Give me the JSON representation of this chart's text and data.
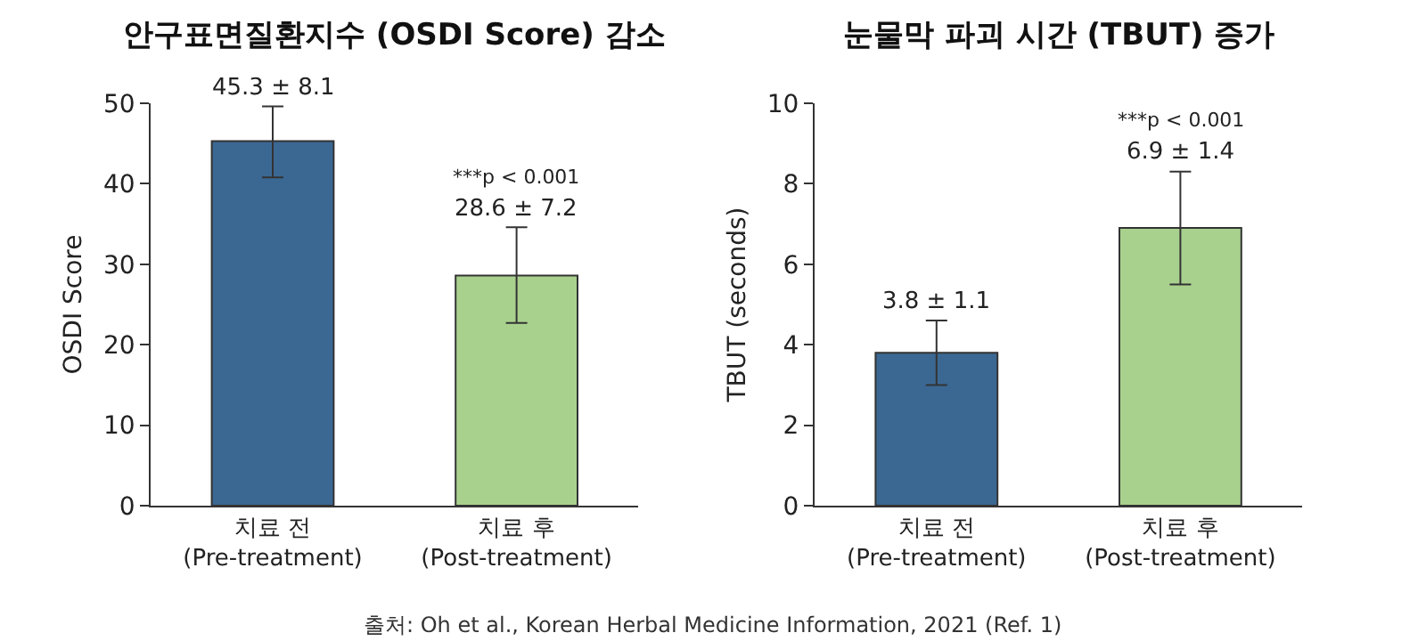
{
  "chart_data": [
    {
      "type": "bar",
      "title": "안구표면질환지수 (OSDI Score) 감소",
      "ylabel": "OSDI Score",
      "categories": [
        "치료 전\n(Pre-treatment)",
        "치료 후\n(Post-treatment)"
      ],
      "values": [
        45.3,
        28.6
      ],
      "colors": [
        "#3b6893",
        "#a9d18e"
      ],
      "errors": [
        [
          40.8,
          49.6
        ],
        [
          22.7,
          34.6
        ]
      ],
      "value_labels": [
        "45.3 ± 8.1",
        "28.6 ± 7.2"
      ],
      "ylim": [
        0,
        50
      ],
      "yticks": [
        0,
        10,
        20,
        30,
        40,
        50
      ],
      "annotations": [
        "***p < 0.001",
        "출처: Oh et al., Korean Herbal Medicine Information, 2021 (Ref. 1)"
      ]
    },
    {
      "type": "bar",
      "title": "눈물막 파괴 시간 (TBUT) 증가",
      "ylabel": "TBUT (seconds)",
      "categories": [
        "치료 전\n(Pre-treatment)",
        "치료 후\n(Post-treatment)"
      ],
      "values": [
        3.8,
        6.9
      ],
      "colors": [
        "#3b6893",
        "#a9d18e"
      ],
      "errors": [
        [
          3.0,
          4.6
        ],
        [
          5.5,
          8.3
        ]
      ],
      "value_labels": [
        "3.8 ± 1.1",
        "6.9 ± 1.4"
      ],
      "ylim": [
        0,
        10
      ],
      "yticks": [
        0,
        2,
        4,
        6,
        8,
        10
      ],
      "annotations": [
        "***p < 0.001"
      ]
    }
  ]
}
